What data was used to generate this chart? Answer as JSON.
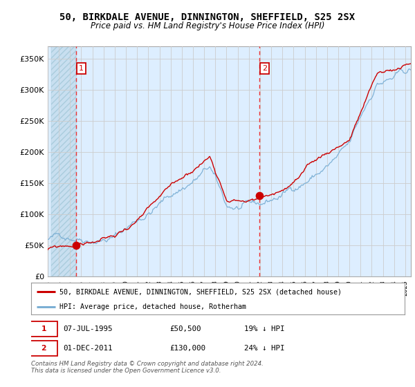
{
  "title": "50, BIRKDALE AVENUE, DINNINGTON, SHEFFIELD, S25 2SX",
  "subtitle": "Price paid vs. HM Land Registry's House Price Index (HPI)",
  "ylabel_ticks": [
    "£0",
    "£50K",
    "£100K",
    "£150K",
    "£200K",
    "£250K",
    "£300K",
    "£350K"
  ],
  "ytick_values": [
    0,
    50000,
    100000,
    150000,
    200000,
    250000,
    300000,
    350000
  ],
  "ylim": [
    0,
    370000
  ],
  "xlim_start": 1993.3,
  "xlim_end": 2025.5,
  "purchase1_date": 1995.52,
  "purchase1_price": 50500,
  "purchase2_date": 2011.92,
  "purchase2_price": 130000,
  "legend_line1": "50, BIRKDALE AVENUE, DINNINGTON, SHEFFIELD, S25 2SX (detached house)",
  "legend_line2": "HPI: Average price, detached house, Rotherham",
  "footnote": "Contains HM Land Registry data © Crown copyright and database right 2024.\nThis data is licensed under the Open Government Licence v3.0.",
  "grid_color": "#cccccc",
  "red_line_color": "#cc0000",
  "blue_line_color": "#7bafd4",
  "dashed_red_color": "#ee3333",
  "point_color": "#cc0000",
  "bg_blue": "#ddeeff",
  "title_fontsize": 10,
  "subtitle_fontsize": 8.5
}
